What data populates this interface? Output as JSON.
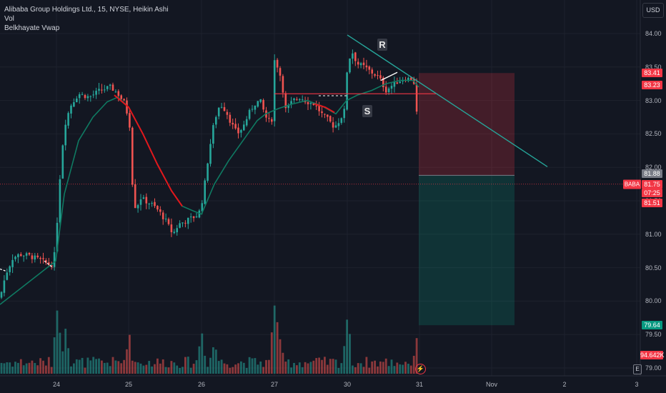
{
  "legend": {
    "title": "Alibaba Group Holdings Ltd., 15, NYSE, Heikin Ashi",
    "vol": "Vol",
    "vwap": "Belkhayate Vwap"
  },
  "currency": "USD",
  "symbol_tag": "BABA",
  "price_tags": {
    "p1": "83.41",
    "p2": "83.23",
    "p3": "81.88",
    "last": "81.75",
    "countdown": "07:25",
    "p4": "81.51",
    "p5": "79.64",
    "volume": "94.642K"
  },
  "annotations": {
    "r": "R",
    "s": "S"
  },
  "e_button": "E",
  "colors": {
    "up": "#26a69a",
    "down": "#ef5350",
    "vwap_red": "#e3171c",
    "trend": "#26a69a",
    "bg": "#131722"
  },
  "chart_data": {
    "type": "candlestick",
    "yaxis": {
      "min": 78.93,
      "max": 84.2,
      "ticks": [
        "84.00",
        "83.50",
        "83.00",
        "82.50",
        "82.00",
        "81.50",
        "81.00",
        "80.50",
        "80.00",
        "79.50",
        "79.00"
      ]
    },
    "xaxis": {
      "ticks": [
        "24",
        "25",
        "26",
        "27",
        "30",
        "31",
        "Nov",
        "2",
        "3"
      ]
    },
    "price_path": [
      [
        0,
        80.05
      ],
      [
        8,
        80.4
      ],
      [
        18,
        80.65
      ],
      [
        28,
        80.7
      ],
      [
        40,
        80.68
      ],
      [
        55,
        80.62
      ],
      [
        68,
        80.55
      ],
      [
        75,
        80.55
      ],
      [
        80,
        81.2
      ],
      [
        86,
        82.2
      ],
      [
        92,
        82.7
      ],
      [
        100,
        82.95
      ],
      [
        110,
        83.1
      ],
      [
        125,
        83.05
      ],
      [
        140,
        83.15
      ],
      [
        155,
        83.2
      ],
      [
        165,
        83.1
      ],
      [
        175,
        82.95
      ],
      [
        182,
        82.6
      ],
      [
        185,
        81.8
      ],
      [
        190,
        81.35
      ],
      [
        196,
        81.55
      ],
      [
        203,
        81.5
      ],
      [
        212,
        81.45
      ],
      [
        222,
        81.35
      ],
      [
        232,
        81.2
      ],
      [
        242,
        81.0
      ],
      [
        250,
        81.15
      ],
      [
        260,
        81.2
      ],
      [
        270,
        81.25
      ],
      [
        278,
        81.3
      ],
      [
        284,
        81.55
      ],
      [
        292,
        82.2
      ],
      [
        300,
        82.7
      ],
      [
        308,
        82.95
      ],
      [
        316,
        82.85
      ],
      [
        324,
        82.65
      ],
      [
        332,
        82.5
      ],
      [
        340,
        82.6
      ],
      [
        348,
        82.8
      ],
      [
        356,
        82.95
      ],
      [
        364,
        83.0
      ],
      [
        372,
        82.75
      ],
      [
        380,
        82.65
      ],
      [
        384,
        83.6
      ],
      [
        389,
        83.5
      ],
      [
        394,
        83.3
      ],
      [
        400,
        82.85
      ],
      [
        410,
        83.0
      ],
      [
        420,
        83.05
      ],
      [
        430,
        82.98
      ],
      [
        440,
        82.95
      ],
      [
        450,
        82.8
      ],
      [
        460,
        82.7
      ],
      [
        468,
        82.6
      ],
      [
        476,
        82.72
      ],
      [
        482,
        82.85
      ],
      [
        486,
        83.5
      ],
      [
        492,
        83.75
      ],
      [
        500,
        83.55
      ],
      [
        510,
        83.5
      ],
      [
        520,
        83.42
      ],
      [
        530,
        83.35
      ],
      [
        540,
        83.15
      ],
      [
        548,
        83.22
      ],
      [
        556,
        83.28
      ],
      [
        566,
        83.33
      ],
      [
        576,
        83.32
      ],
      [
        582,
        83.22
      ],
      [
        586,
        81.75
      ]
    ],
    "vwap_path": [
      [
        0,
        79.95
      ],
      [
        30,
        80.2
      ],
      [
        60,
        80.45
      ],
      [
        78,
        80.6
      ],
      [
        90,
        81.6
      ],
      [
        110,
        82.4
      ],
      [
        130,
        82.75
      ],
      [
        150,
        82.98
      ],
      [
        165,
        83.05
      ],
      [
        180,
        82.9
      ],
      [
        200,
        82.5
      ],
      [
        220,
        82.05
      ],
      [
        240,
        81.65
      ],
      [
        255,
        81.42
      ],
      [
        270,
        81.35
      ],
      [
        282,
        81.3
      ],
      [
        300,
        81.75
      ],
      [
        320,
        82.1
      ],
      [
        340,
        82.4
      ],
      [
        360,
        82.7
      ],
      [
        372,
        82.8
      ],
      [
        390,
        82.88
      ],
      [
        410,
        82.95
      ],
      [
        430,
        83.0
      ],
      [
        450,
        82.92
      ],
      [
        470,
        82.8
      ],
      [
        485,
        83.0
      ],
      [
        500,
        83.08
      ],
      [
        520,
        83.15
      ],
      [
        540,
        83.25
      ],
      [
        560,
        83.3
      ],
      [
        578,
        83.3
      ],
      [
        586,
        83.2
      ]
    ],
    "red_vwap_segments": [
      [
        [
          160,
          83.08
        ],
        [
          180,
          82.9
        ],
        [
          200,
          82.5
        ],
        [
          220,
          82.05
        ],
        [
          240,
          81.65
        ],
        [
          255,
          81.42
        ]
      ],
      [
        [
          440,
          82.95
        ],
        [
          455,
          82.9
        ],
        [
          468,
          82.82
        ]
      ]
    ],
    "trendline": [
      [
        486,
        83.98
      ],
      [
        766,
        82.01
      ]
    ],
    "support_line": [
      [
        384,
        83.1
      ],
      [
        610,
        83.1
      ]
    ],
    "resistance_stub": [
      [
        446,
        83.07
      ],
      [
        488,
        83.07
      ]
    ],
    "short_position": {
      "x_start": 586,
      "x_end": 720,
      "entry": 81.88,
      "stop": 83.41,
      "target": 79.64
    },
    "last_price_line": 81.75
  }
}
